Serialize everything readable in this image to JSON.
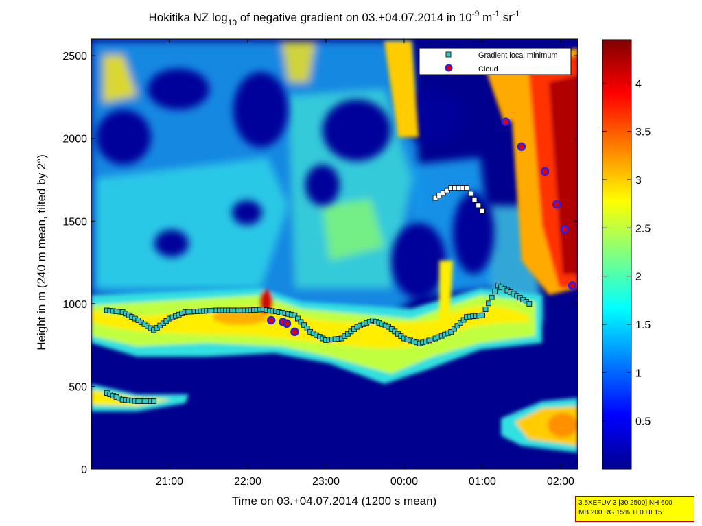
{
  "chart_data": {
    "type": "heatmap",
    "title": {
      "main": "Hokitika NZ log",
      "sub": "10",
      "rest": " of negative gradient on 03.+04.07.2014 in 10",
      "sup1": "-9",
      "mid": " m",
      "sup2": "-1",
      "end": " sr",
      "sup3": "-1"
    },
    "xlabel": "Time on 03.+04.07.2014 (1200 s mean)",
    "ylabel": "Height in m (240 m mean, tilted by 2°)",
    "x_ticks": [
      "21:00",
      "22:00",
      "23:00",
      "00:00",
      "01:00",
      "02:00"
    ],
    "y_ticks": [
      "0",
      "500",
      "1000",
      "1500",
      "2000",
      "2500"
    ],
    "colorbar_ticks": [
      "0.5",
      "1",
      "1.5",
      "2",
      "2.5",
      "3",
      "3.5",
      "4"
    ],
    "colorbar_range": [
      0,
      4.45
    ],
    "colormap": "jet",
    "legend_position": "top-right",
    "legend": [
      {
        "label": "Gradient local minimum",
        "marker": "square",
        "color": "#33c8c8"
      },
      {
        "label": "Cloud",
        "marker": "circle",
        "color": "#e00000",
        "edge": "#2020ff"
      }
    ],
    "gradient_local_minimum_series": {
      "x_hours": [
        20.2,
        20.4,
        20.6,
        20.8,
        21.0,
        21.2,
        21.4,
        21.6,
        21.8,
        22.0,
        22.2,
        22.4,
        22.6,
        22.8,
        23.0,
        23.2,
        23.4,
        23.6,
        23.8,
        24.0,
        24.2,
        24.4,
        24.6,
        24.8,
        25.0,
        25.2,
        25.4,
        25.6
      ],
      "y_m": [
        960,
        950,
        900,
        840,
        910,
        950,
        955,
        960,
        960,
        960,
        965,
        950,
        930,
        830,
        780,
        790,
        860,
        900,
        860,
        790,
        760,
        790,
        830,
        920,
        930,
        1110,
        1060,
        1000
      ]
    },
    "lower_layer_series": {
      "x_hours": [
        20.2,
        20.4,
        20.6,
        20.8
      ],
      "y_m": [
        460,
        420,
        410,
        410
      ]
    },
    "upper_layer_series": {
      "x_hours": [
        24.4,
        24.6,
        24.8,
        25.0
      ],
      "y_m": [
        1640,
        1700,
        1700,
        1560
      ]
    },
    "cloud_series": {
      "x_hours": [
        22.3,
        22.45,
        22.5,
        22.6,
        25.3,
        25.5,
        25.8,
        25.95,
        26.05,
        26.15
      ],
      "y_m": [
        900,
        890,
        880,
        830,
        2100,
        1950,
        1800,
        1600,
        1450,
        1110
      ]
    }
  },
  "stamp": {
    "line1": "3.5XEFUV 3 [30 2500] NH 600",
    "line2": "MB 200 RG 15% TI 0 HI 15"
  }
}
